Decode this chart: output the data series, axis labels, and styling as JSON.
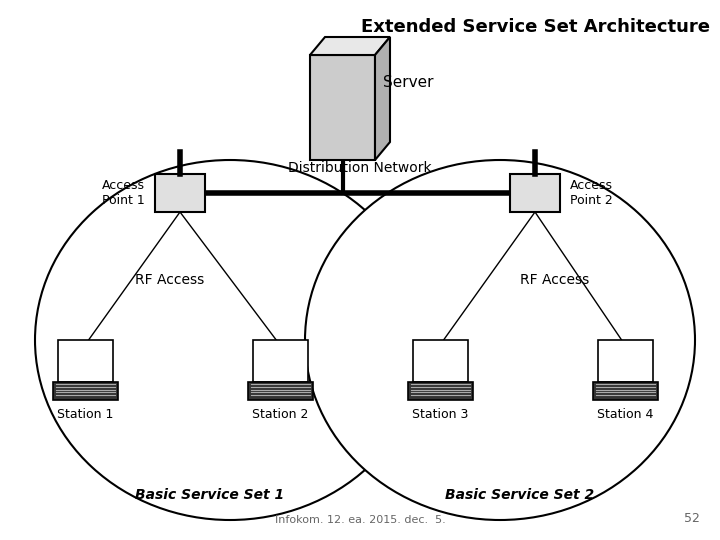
{
  "title": "Extended Service Set Architecture",
  "title_fontsize": 13,
  "title_fontweight": "bold",
  "server_label": "Server",
  "server_color": "#cccccc",
  "server_top_color": "#e8e8e8",
  "dist_label": "Distribution Network",
  "ap1_label": "Access\nPoint 1",
  "ap2_label": "Access\nPoint 2",
  "ap_color": "#e0e0e0",
  "bss1_label": "Basic Service Set 1",
  "bss2_label": "Basic Service Set 2",
  "rf1_label": "RF Access",
  "rf2_label": "RF Access",
  "stations": [
    {
      "label": "Station 1"
    },
    {
      "label": "Station 2"
    },
    {
      "label": "Station 3"
    },
    {
      "label": "Station 4"
    }
  ],
  "footer_text": "Infokom. 12. ea. 2015. dec.  5.",
  "page_num": "52",
  "bg_color": "#ffffff",
  "line_color": "#000000"
}
